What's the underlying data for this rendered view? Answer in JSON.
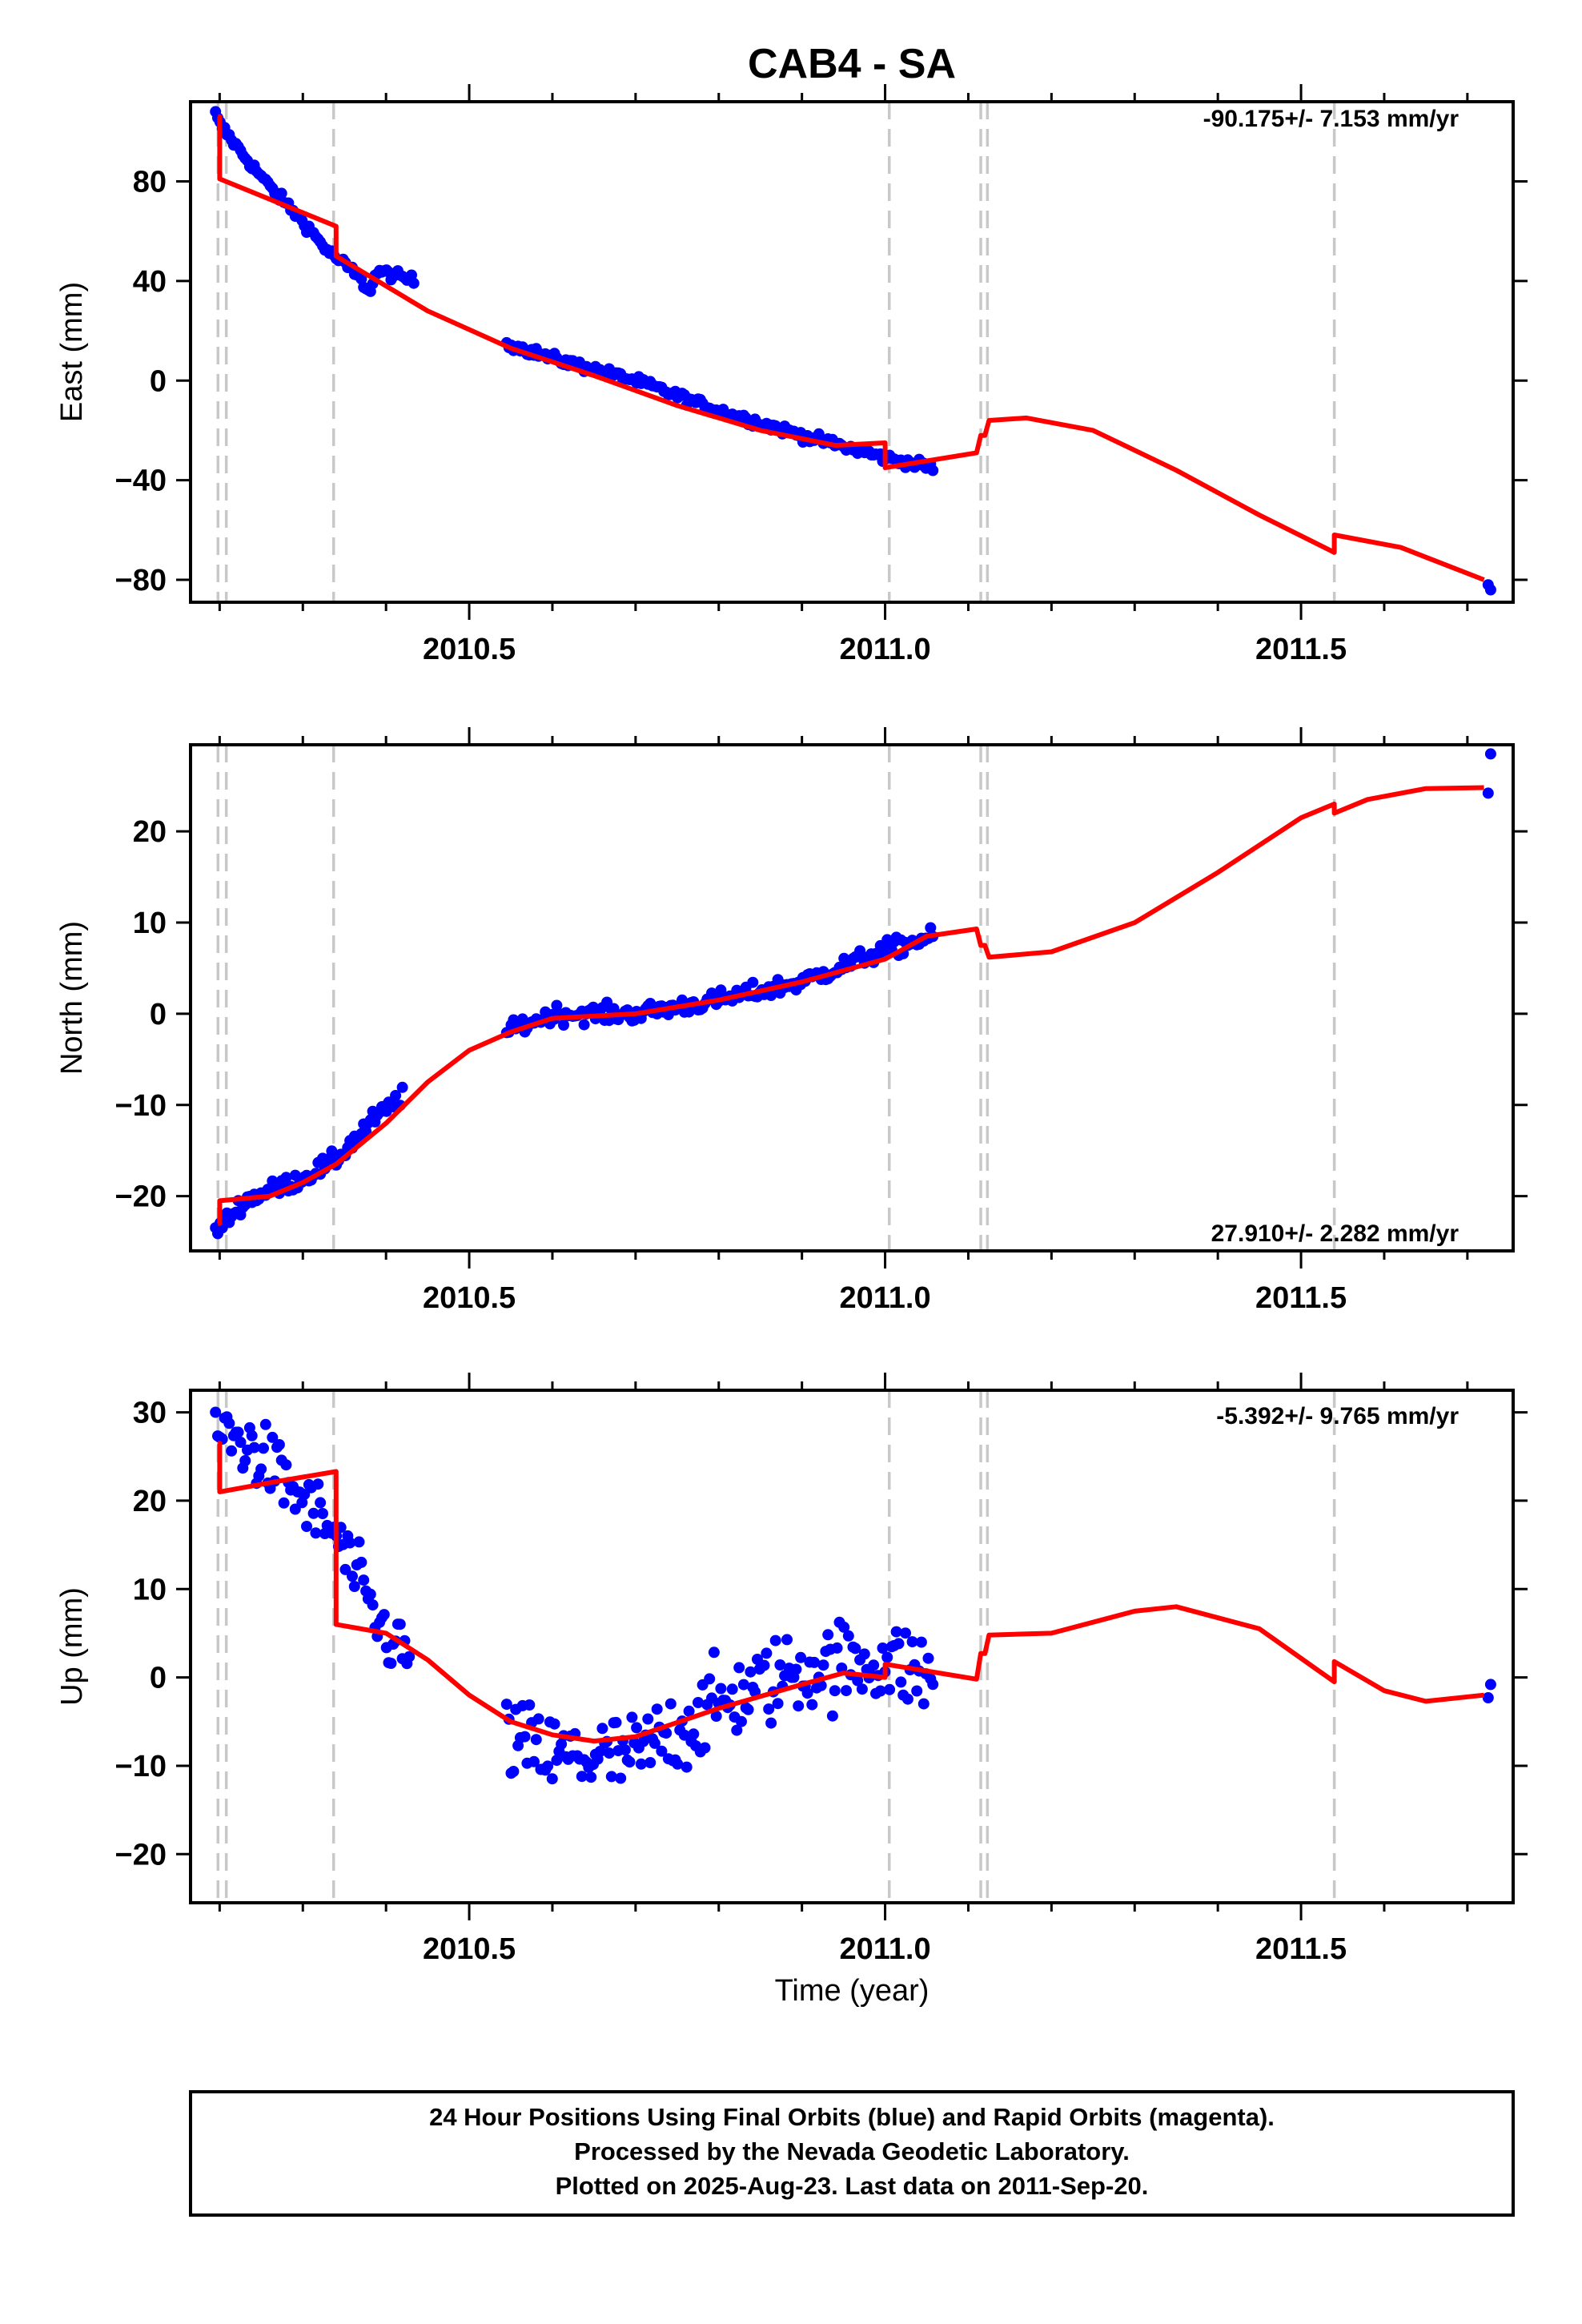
{
  "title": "CAB4 - SA",
  "colors": {
    "final_orbits": "#0000ff",
    "rapid_orbits": "#ff00ff",
    "model": "#ff0000",
    "breaks": "#c8c8c8",
    "axes": "#000000"
  },
  "x_axis": {
    "label": "Time (year)",
    "range": [
      2010.165,
      2011.755
    ],
    "major_ticks": [
      2010.5,
      2011.0,
      2011.5
    ],
    "major_tick_labels": [
      "2010.5",
      "2011.0",
      "2011.5"
    ],
    "minor_ticks": [
      2010.2,
      2010.3,
      2010.4,
      2010.6,
      2010.7,
      2010.8,
      2010.9,
      2011.1,
      2011.2,
      2011.3,
      2011.4,
      2011.6,
      2011.7
    ]
  },
  "breaks": [
    2010.198,
    2010.208,
    2010.337,
    2011.005,
    2011.115,
    2011.123,
    2011.54
  ],
  "footer": {
    "lines": [
      "24 Hour Positions Using Final Orbits (blue) and Rapid Orbits (magenta).",
      "Processed by the Nevada Geodetic Laboratory.",
      "Plotted on 2025-Aug-23. Last data on 2011-Sep-20."
    ]
  },
  "chart_data": [
    {
      "type": "scatter",
      "name": "east",
      "ylabel": "East (mm)",
      "ylim": [
        -89,
        112
      ],
      "yticks": [
        -80,
        -40,
        0,
        40,
        80
      ],
      "ytick_labels": [
        "−80",
        "−40",
        "0",
        "40",
        "80"
      ],
      "rate": "-90.175+/- 7.153 mm/yr",
      "rate_position": "top-right",
      "model": [
        [
          2010.198,
          106
        ],
        [
          2010.2,
          106
        ],
        [
          2010.2,
          81
        ],
        [
          2010.34,
          62
        ],
        [
          2010.34,
          50
        ],
        [
          2010.38,
          42
        ],
        [
          2010.45,
          28
        ],
        [
          2010.55,
          13
        ],
        [
          2010.65,
          2
        ],
        [
          2010.75,
          -10
        ],
        [
          2010.85,
          -20
        ],
        [
          2010.94,
          -26
        ],
        [
          2011.0,
          -25
        ],
        [
          2011.0,
          -35
        ],
        [
          2011.11,
          -29
        ],
        [
          2011.115,
          -22
        ],
        [
          2011.12,
          -22
        ],
        [
          2011.125,
          -16
        ],
        [
          2011.17,
          -15
        ],
        [
          2011.25,
          -20
        ],
        [
          2011.35,
          -36
        ],
        [
          2011.45,
          -54
        ],
        [
          2011.54,
          -69
        ],
        [
          2011.54,
          -62
        ],
        [
          2011.62,
          -67
        ],
        [
          2011.72,
          -80
        ]
      ],
      "anchors": [
        [
          2010.195,
          107
        ],
        [
          2010.2,
          103
        ],
        [
          2010.23,
          90
        ],
        [
          2010.26,
          78
        ],
        [
          2010.3,
          64
        ],
        [
          2010.33,
          52
        ],
        [
          2010.36,
          44
        ],
        [
          2010.38,
          36
        ],
        [
          2010.39,
          44
        ],
        [
          2010.435,
          40
        ],
        [
          2010.545,
          15
        ],
        [
          2010.6,
          9
        ],
        [
          2010.7,
          0
        ],
        [
          2010.8,
          -12
        ],
        [
          2010.9,
          -22
        ],
        [
          2011.0,
          -31
        ],
        [
          2011.06,
          -35
        ]
      ],
      "segments": [
        [
          2010.195,
          2010.435,
          2.0
        ],
        [
          2010.545,
          2011.06,
          2.0
        ]
      ],
      "extra_points": [
        [
          2011.725,
          -82
        ],
        [
          2011.728,
          -84
        ]
      ]
    },
    {
      "type": "scatter",
      "name": "north",
      "ylabel": "North (mm)",
      "ylim": [
        -26,
        29.5
      ],
      "yticks": [
        -20,
        -10,
        0,
        10,
        20
      ],
      "ytick_labels": [
        "−20",
        "−10",
        "0",
        "10",
        "20"
      ],
      "rate": "27.910+/- 2.282 mm/yr",
      "rate_position": "bottom-right",
      "model": [
        [
          2010.198,
          -23
        ],
        [
          2010.2,
          -23
        ],
        [
          2010.2,
          -20.5
        ],
        [
          2010.26,
          -20
        ],
        [
          2010.3,
          -18.5
        ],
        [
          2010.34,
          -16.5
        ],
        [
          2010.4,
          -12
        ],
        [
          2010.45,
          -7.5
        ],
        [
          2010.5,
          -4
        ],
        [
          2010.55,
          -2
        ],
        [
          2010.6,
          -0.5
        ],
        [
          2010.7,
          0
        ],
        [
          2010.8,
          1.5
        ],
        [
          2010.9,
          3.5
        ],
        [
          2011.0,
          6
        ],
        [
          2011.05,
          8.5
        ],
        [
          2011.11,
          9.3
        ],
        [
          2011.115,
          7.5
        ],
        [
          2011.12,
          7.5
        ],
        [
          2011.125,
          6.2
        ],
        [
          2011.2,
          6.8
        ],
        [
          2011.3,
          10
        ],
        [
          2011.4,
          15.5
        ],
        [
          2011.5,
          21.5
        ],
        [
          2011.54,
          23
        ],
        [
          2011.54,
          22
        ],
        [
          2011.58,
          23.5
        ],
        [
          2011.65,
          24.7
        ],
        [
          2011.72,
          24.8
        ]
      ],
      "anchors": [
        [
          2010.195,
          -24
        ],
        [
          2010.23,
          -20.5
        ],
        [
          2010.3,
          -18
        ],
        [
          2010.34,
          -16
        ],
        [
          2010.38,
          -12
        ],
        [
          2010.42,
          -9
        ],
        [
          2010.545,
          -2
        ],
        [
          2010.6,
          0
        ],
        [
          2010.7,
          0
        ],
        [
          2010.8,
          1.5
        ],
        [
          2010.9,
          3.5
        ],
        [
          2011.0,
          7
        ],
        [
          2011.06,
          8.5
        ]
      ],
      "segments": [
        [
          2010.195,
          2010.42,
          1.0
        ],
        [
          2010.545,
          2011.06,
          1.0
        ]
      ],
      "extra_points": [
        [
          2011.725,
          24.2
        ],
        [
          2011.728,
          28.5
        ]
      ]
    },
    {
      "type": "scatter",
      "name": "up",
      "ylabel": "Up (mm)",
      "ylim": [
        -25.5,
        32.5
      ],
      "yticks": [
        -20,
        -10,
        0,
        10,
        20,
        30
      ],
      "ytick_labels": [
        "−20",
        "−10",
        "0",
        "10",
        "20",
        "30"
      ],
      "rate": "-5.392+/- 9.765 mm/yr",
      "rate_position": "top-right",
      "model": [
        [
          2010.198,
          26.5
        ],
        [
          2010.2,
          26.5
        ],
        [
          2010.2,
          21
        ],
        [
          2010.27,
          22.2
        ],
        [
          2010.34,
          23.3
        ],
        [
          2010.34,
          6
        ],
        [
          2010.4,
          5
        ],
        [
          2010.45,
          2
        ],
        [
          2010.5,
          -2
        ],
        [
          2010.55,
          -5
        ],
        [
          2010.6,
          -6.5
        ],
        [
          2010.65,
          -7.2
        ],
        [
          2010.7,
          -6.7
        ],
        [
          2010.8,
          -3.5
        ],
        [
          2010.9,
          -0.8
        ],
        [
          2010.95,
          0.5
        ],
        [
          2011.0,
          0
        ],
        [
          2011.0,
          1.5
        ],
        [
          2011.11,
          -0.2
        ],
        [
          2011.115,
          2.7
        ],
        [
          2011.12,
          2.7
        ],
        [
          2011.125,
          4.8
        ],
        [
          2011.2,
          5
        ],
        [
          2011.3,
          7.5
        ],
        [
          2011.35,
          8
        ],
        [
          2011.45,
          5.5
        ],
        [
          2011.54,
          -0.5
        ],
        [
          2011.54,
          1.8
        ],
        [
          2011.6,
          -1.5
        ],
        [
          2011.65,
          -2.7
        ],
        [
          2011.72,
          -2
        ]
      ],
      "anchors": [
        [
          2010.195,
          28
        ],
        [
          2010.24,
          26
        ],
        [
          2010.3,
          20
        ],
        [
          2010.34,
          16
        ],
        [
          2010.36,
          12
        ],
        [
          2010.39,
          6
        ],
        [
          2010.43,
          2
        ],
        [
          2010.545,
          -7
        ],
        [
          2010.6,
          -9
        ],
        [
          2010.7,
          -9
        ],
        [
          2010.8,
          -3
        ],
        [
          2010.9,
          1
        ],
        [
          2011.0,
          2
        ],
        [
          2011.06,
          0
        ]
      ],
      "segments": [
        [
          2010.195,
          2010.43,
          4.0
        ],
        [
          2010.545,
          2011.06,
          5.0
        ]
      ],
      "extra_points": [
        [
          2011.725,
          -2.3
        ],
        [
          2011.728,
          -0.8
        ]
      ]
    }
  ]
}
